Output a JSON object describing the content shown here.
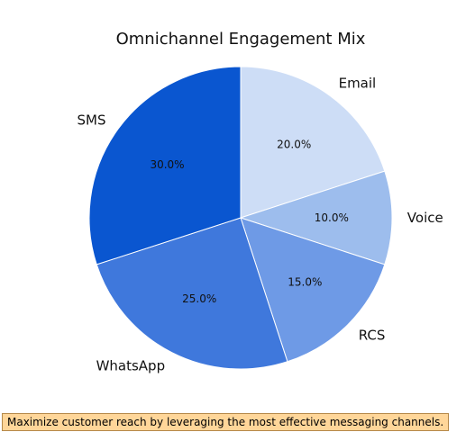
{
  "colors": {
    "background": "#ffffff",
    "text": "#111111",
    "footnote_bg": "#ffd699",
    "footnote_border": "#b5894a",
    "slice_stroke": "#ffffff"
  },
  "chart_data": {
    "type": "pie",
    "title": "Omnichannel Engagement Mix",
    "start_angle_deg": 90,
    "direction": "clockwise",
    "slices": [
      {
        "label": "Email",
        "value": 20.0,
        "pct_label": "20.0%",
        "color": "#cdddf6"
      },
      {
        "label": "Voice",
        "value": 10.0,
        "pct_label": "10.0%",
        "color": "#9dbded"
      },
      {
        "label": "RCS",
        "value": 15.0,
        "pct_label": "15.0%",
        "color": "#6e9ae6"
      },
      {
        "label": "WhatsApp",
        "value": 25.0,
        "pct_label": "25.0%",
        "color": "#3f78dc"
      },
      {
        "label": "SMS",
        "value": 30.0,
        "pct_label": "30.0%",
        "color": "#0a56d0"
      }
    ]
  },
  "footnote": {
    "text": "Maximize customer reach by leveraging the most effective messaging channels."
  }
}
